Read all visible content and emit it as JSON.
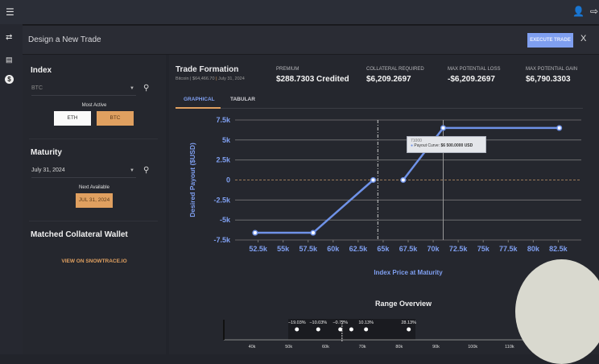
{
  "header": {
    "title": "Design a New Trade",
    "execute_label": "EXECUTE TRADE",
    "close_label": "X"
  },
  "index": {
    "title": "Index",
    "value": "BTC",
    "most_active_label": "Most Active",
    "options": [
      "ETH",
      "BTC"
    ]
  },
  "maturity": {
    "title": "Maturity",
    "value": "July 31, 2024",
    "next_available_label": "Next Available",
    "next_available": "JUL 31, 2024"
  },
  "wallet": {
    "title": "Matched Collateral Wallet",
    "link": "VIEW ON SNOWTRACE.IO"
  },
  "trade": {
    "title": "Trade Formation",
    "sub_asset": "Bitcoin",
    "sub_price": "$64,466.70",
    "sub_date": "July 31, 2024",
    "stats": [
      {
        "label": "PREMIUM",
        "value": "$288.7303 Credited"
      },
      {
        "label": "COLLATERAL REQUIRED",
        "value": "$6,209.2697"
      },
      {
        "label": "MAX POTENTIAL LOSS",
        "value": "-$6,209.2697"
      },
      {
        "label": "MAX POTENTIAL GAIN",
        "value": "$6,790.3303"
      }
    ],
    "tabs": [
      "GRAPHICAL",
      "TABULAR"
    ]
  },
  "tooltip": {
    "x": "71000",
    "label": "Payout Curve:",
    "value": "$6 500.0000 USD"
  },
  "range": {
    "title": "Range Overview",
    "pct_labels": [
      "−19.03%",
      "−10.03%",
      "−0.72%",
      "10.13%",
      "28.13%"
    ],
    "ticks": [
      "40k",
      "50k",
      "60k",
      "70k",
      "80k",
      "90k",
      "100k",
      "110k"
    ]
  },
  "colors": {
    "accent": "#7f9ff0",
    "orange": "#e0a060",
    "line": "#6f92e8"
  },
  "chart_data": {
    "type": "line",
    "xlabel": "Index Price at Maturity",
    "ylabel": "Desired Payout ($USD)",
    "xlim": [
      50200,
      84800
    ],
    "ylim": [
      -7500,
      7500
    ],
    "x_ticks": [
      "52.5k",
      "55k",
      "57.5k",
      "60k",
      "62.5k",
      "65k",
      "67.5k",
      "70k",
      "72.5k",
      "75k",
      "77.5k",
      "80k",
      "82.5k"
    ],
    "y_ticks": [
      "7.5k",
      "5k",
      "2.5k",
      "0",
      "-2.5k",
      "-5k",
      "-7.5k"
    ],
    "current_price": 64466.7,
    "series": [
      {
        "name": "Payout Curve",
        "segments": [
          [
            [
              52200,
              -6600
            ],
            [
              58000,
              -6600
            ],
            [
              64000,
              0
            ]
          ],
          [
            [
              67000,
              0
            ],
            [
              71000,
              6500
            ],
            [
              82600,
              6500
            ]
          ]
        ]
      }
    ]
  }
}
